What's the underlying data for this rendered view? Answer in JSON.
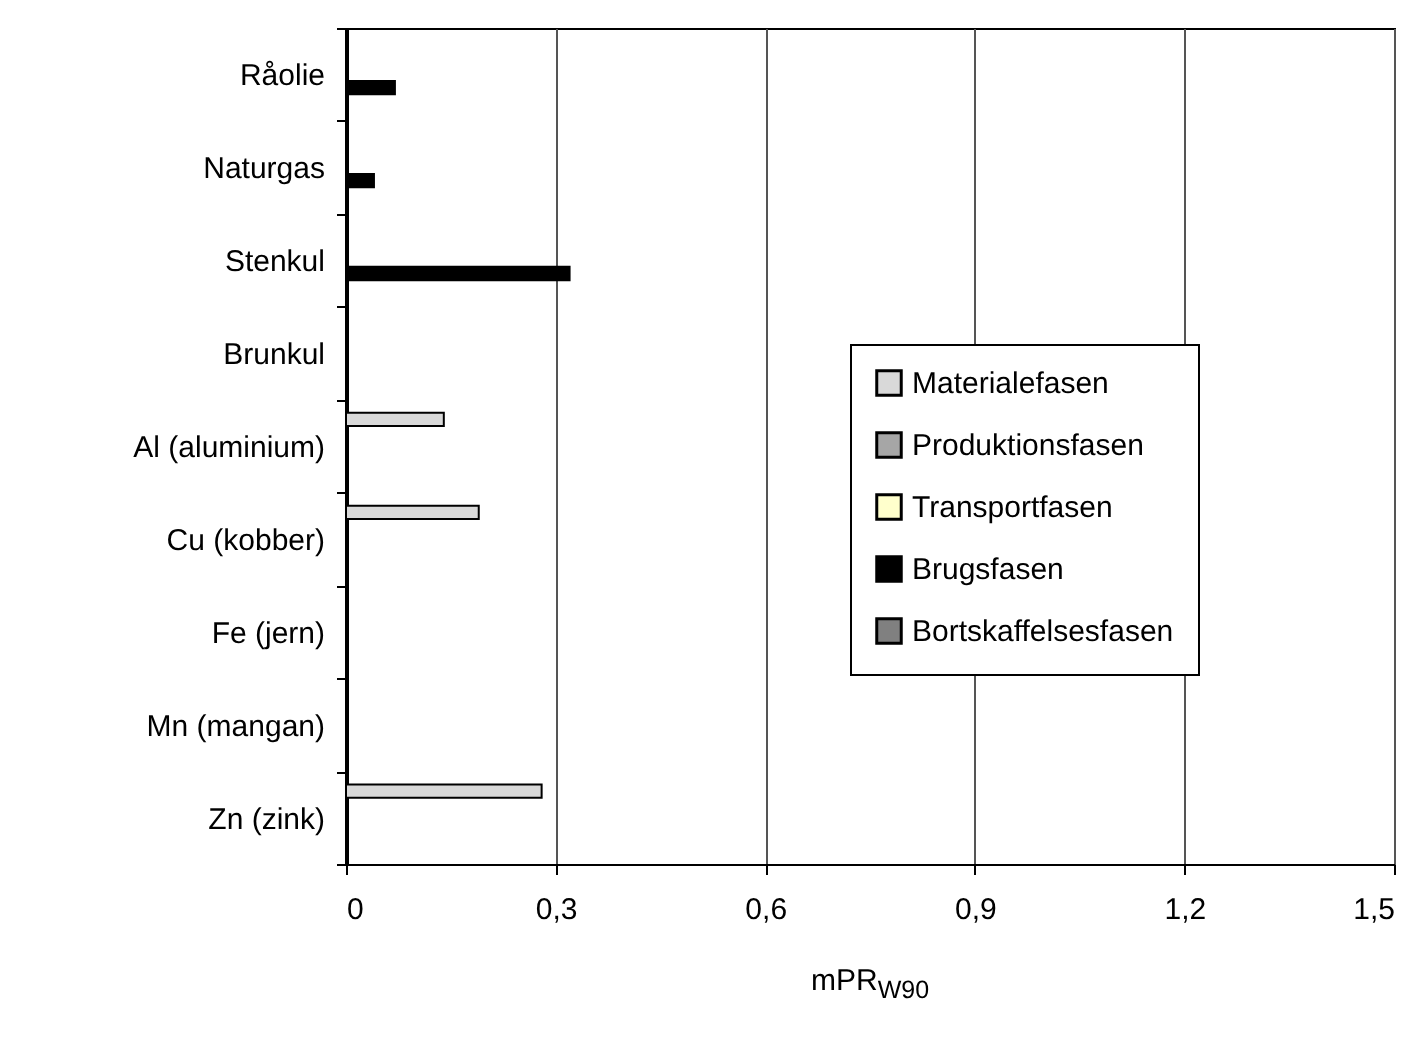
{
  "chart_data": {
    "type": "bar",
    "orientation": "horizontal",
    "xlabel": "mPR$_{W90}$",
    "categories": [
      "Råolie",
      "Naturgas",
      "Stenkul",
      "Brunkul",
      "Al (aluminium)",
      "Cu (kobber)",
      "Fe (jern)",
      "Mn (mangan)",
      "Zn (zink)"
    ],
    "series": [
      {
        "name": "Materialefasen",
        "color": "#d9d9d9",
        "values": [
          null,
          null,
          null,
          null,
          0.14,
          0.19,
          null,
          null,
          0.28
        ]
      },
      {
        "name": "Produktionsfasen",
        "color": "#a6a6a6",
        "values": [
          null,
          null,
          null,
          null,
          null,
          null,
          null,
          null,
          null
        ]
      },
      {
        "name": "Transportfasen",
        "color": "#ffffcc",
        "values": [
          null,
          null,
          null,
          null,
          null,
          null,
          null,
          null,
          null
        ]
      },
      {
        "name": "Brugsfasen",
        "color": "#000000",
        "values": [
          0.07,
          0.04,
          0.32,
          null,
          null,
          null,
          null,
          null,
          null
        ]
      },
      {
        "name": "Bortskaffelsesfasen",
        "color": "#808080",
        "values": [
          null,
          null,
          null,
          null,
          null,
          null,
          null,
          null,
          null
        ]
      }
    ],
    "xlim": [
      0,
      1.5
    ],
    "xticks": [
      0,
      {
        "value": 0.3,
        "label": "0,3"
      },
      {
        "value": 0.6,
        "label": "0,6"
      },
      {
        "value": 0.9,
        "label": "0,9"
      },
      {
        "value": 1.2,
        "label": "1,2"
      },
      {
        "value": 1.5,
        "label": "1,5"
      }
    ],
    "grid": "x",
    "legend": "right"
  }
}
